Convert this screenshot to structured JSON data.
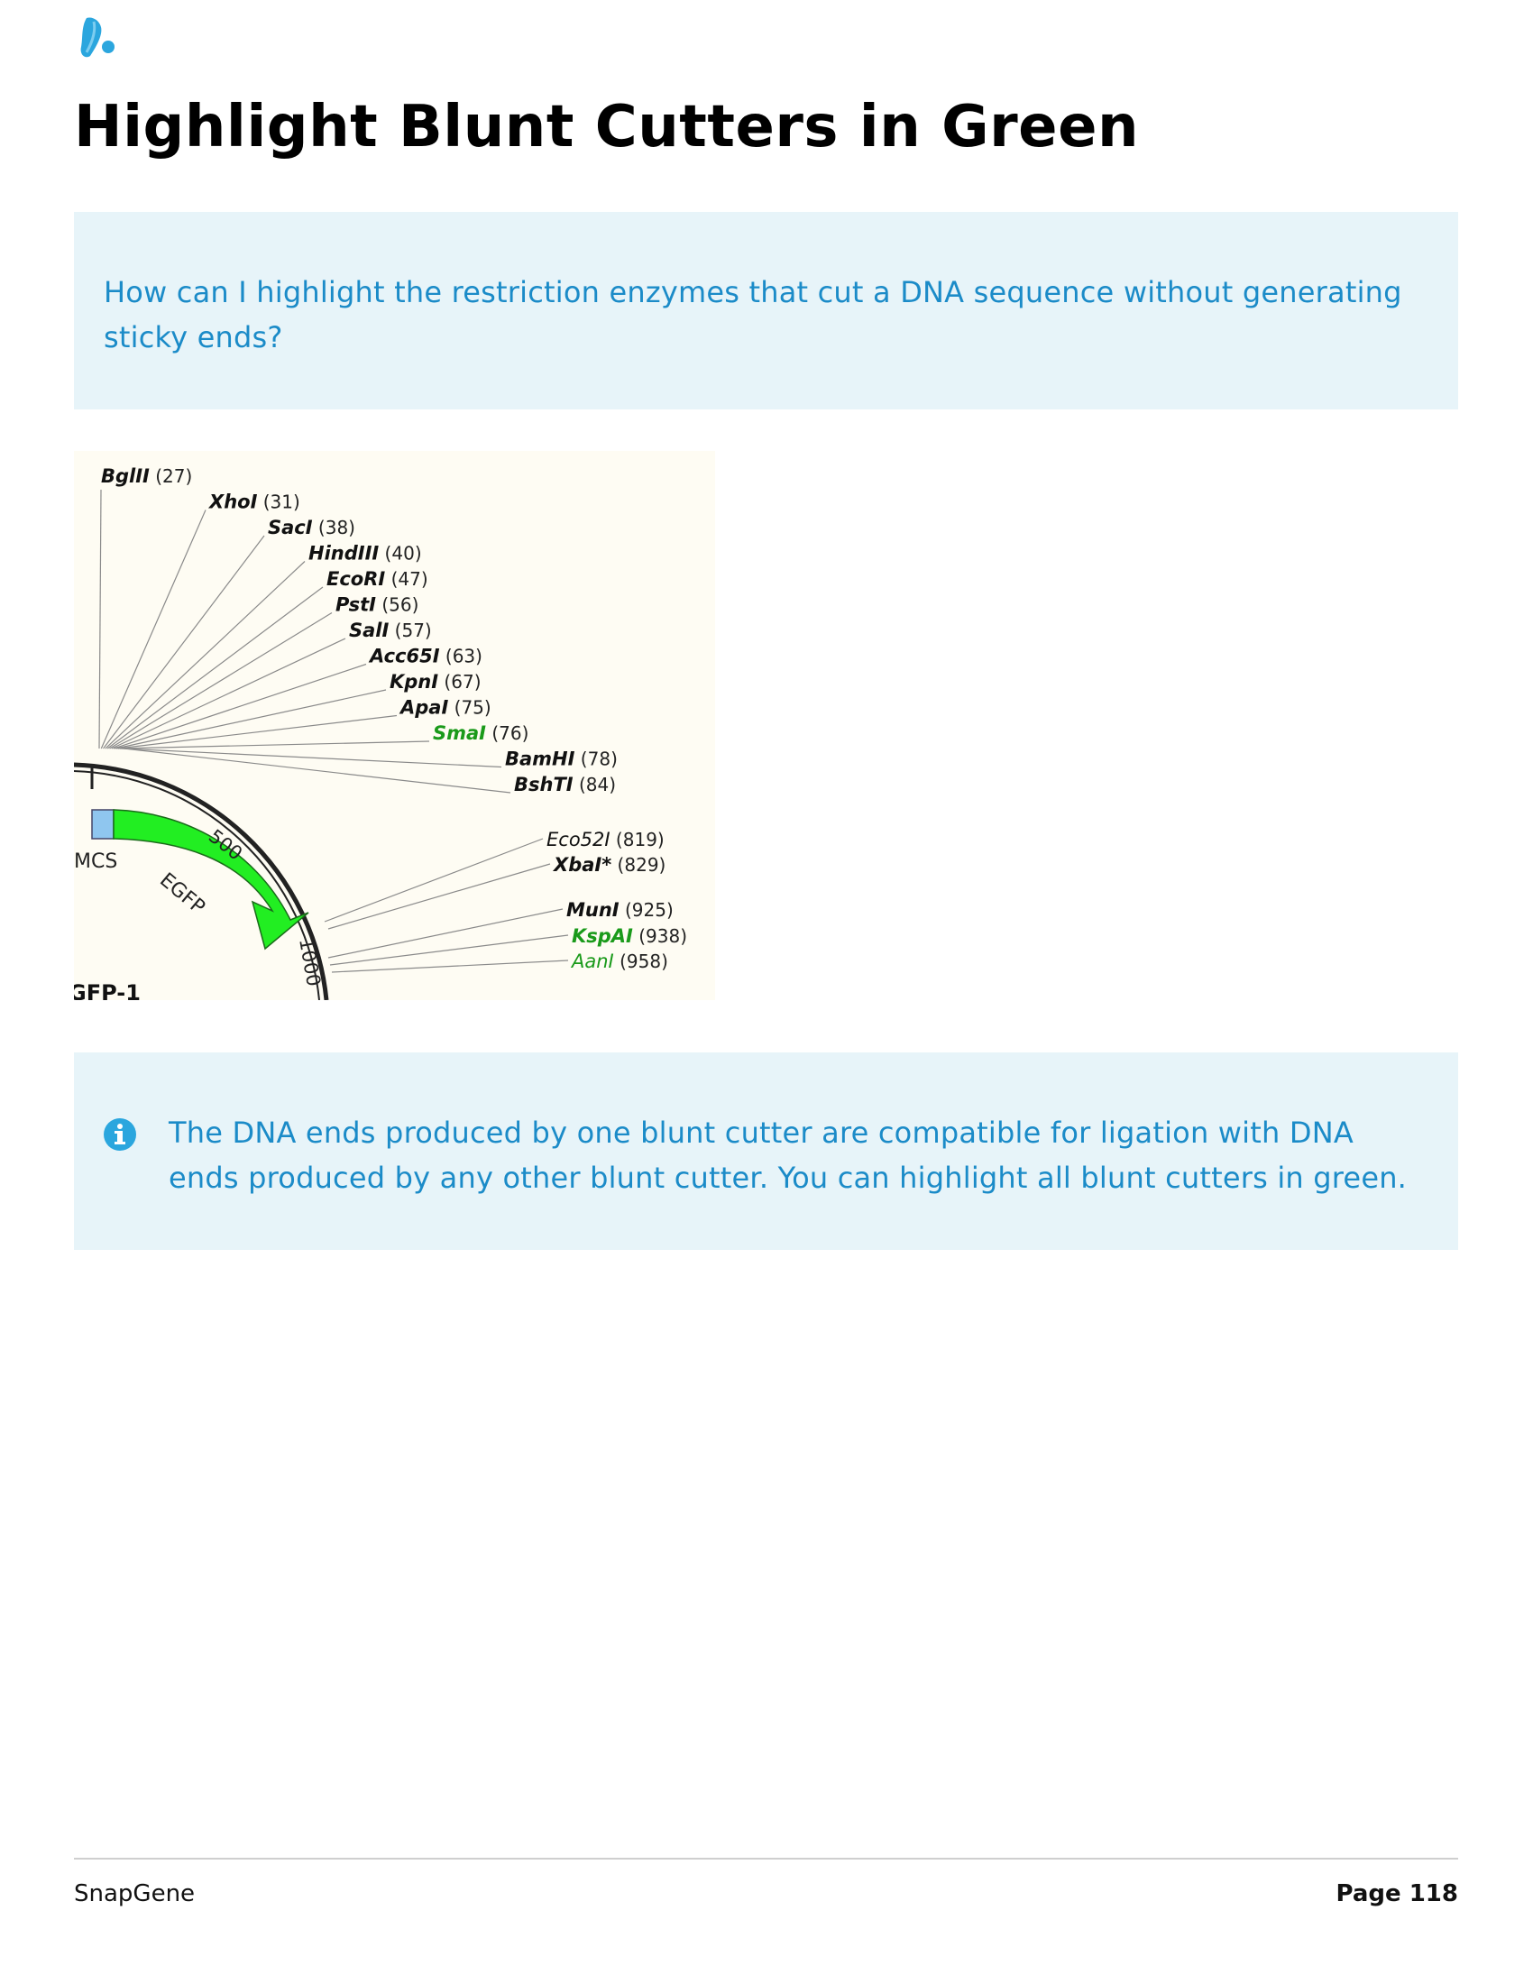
{
  "header": {
    "logo_icon": "snapgene-logo-icon",
    "title": "Highlight Blunt Cutters in Green"
  },
  "question": {
    "text": "How can I highlight the restriction enzymes that cut a DNA sequence without generating sticky ends?"
  },
  "map": {
    "enzymes_top": [
      {
        "name": "BglII",
        "pos": "(27)",
        "blunt": false
      },
      {
        "name": "XhoI",
        "pos": "(31)",
        "blunt": false
      },
      {
        "name": "SacI",
        "pos": "(38)",
        "blunt": false
      },
      {
        "name": "HindIII",
        "pos": "(40)",
        "blunt": false
      },
      {
        "name": "EcoRI",
        "pos": "(47)",
        "blunt": false
      },
      {
        "name": "PstI",
        "pos": "(56)",
        "blunt": false
      },
      {
        "name": "SalI",
        "pos": "(57)",
        "blunt": false
      },
      {
        "name": "Acc65I",
        "pos": "(63)",
        "blunt": false
      },
      {
        "name": "KpnI",
        "pos": "(67)",
        "blunt": false
      },
      {
        "name": "ApaI",
        "pos": "(75)",
        "blunt": false
      },
      {
        "name": "SmaI",
        "pos": "(76)",
        "blunt": true
      },
      {
        "name": "BamHI",
        "pos": "(78)",
        "blunt": false
      },
      {
        "name": "BshTI",
        "pos": "(84)",
        "blunt": false
      }
    ],
    "enzymes_bottom": [
      {
        "name": "Eco52I",
        "pos": "(819)",
        "blunt": false
      },
      {
        "name": "XbaI*",
        "pos": "(829)",
        "blunt": false
      },
      {
        "name": "MunI",
        "pos": "(925)",
        "blunt": false
      },
      {
        "name": "KspAI",
        "pos": "(938)",
        "blunt": true
      },
      {
        "name": "AanI",
        "pos": "(958)",
        "blunt": true
      }
    ],
    "features": {
      "mcs": "MCS",
      "egfp": "EGFP",
      "tick_500": "500",
      "tick_1000": "1000",
      "plasmid_name": "GFP-1"
    },
    "colors": {
      "blunt": "#1a9a1a",
      "egfp": "#22ee22",
      "mcs": "#8fc6ef",
      "background": "#fefcf3"
    }
  },
  "info": {
    "icon": "info-icon",
    "text": "The DNA ends produced by one blunt cutter are compatible for ligation with DNA ends produced by any other blunt cutter. You can highlight all blunt cutters in green."
  },
  "footer": {
    "left": "SnapGene",
    "right": "Page 118"
  }
}
